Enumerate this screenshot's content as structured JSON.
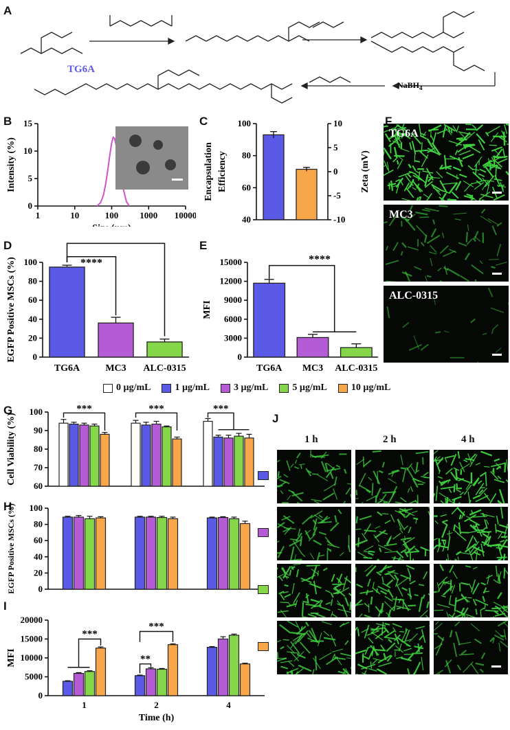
{
  "panels": {
    "A": "A",
    "B": "B",
    "C": "C",
    "D": "D",
    "E": "E",
    "F": "F",
    "G": "G",
    "H": "H",
    "I": "I",
    "J": "J"
  },
  "scheme": {
    "compound_name": "TG6A",
    "reagent": "NaBH4",
    "reagent_main": "NaBH",
    "reagent_sub": "4"
  },
  "colors": {
    "c0": "#ffffff",
    "c1": "#5a5ae6",
    "c3": "#b65bd6",
    "c5": "#86d64a",
    "c10": "#f7a64a",
    "green": "#3fd23f",
    "dls": "#cc55cc"
  },
  "legend": [
    {
      "label": "0 µg/mL",
      "color": "#ffffff"
    },
    {
      "label": "1 µg/mL",
      "color": "#5a5ae6"
    },
    {
      "label": "3 µg/mL",
      "color": "#b65bd6"
    },
    {
      "label": "5 µg/mL",
      "color": "#86d64a"
    },
    {
      "label": "10 µg/mL",
      "color": "#f7a64a"
    }
  ],
  "micro_F": [
    {
      "label": "TG6A",
      "density": 1.0
    },
    {
      "label": "MC3",
      "density": 0.3
    },
    {
      "label": "ALC-0315",
      "density": 0.08
    }
  ],
  "micro_J": {
    "cols": [
      "1 h",
      "2 h",
      "4 h"
    ],
    "rows": [
      {
        "color": "#5a5ae6",
        "density": [
          0.55,
          0.6,
          0.9
        ]
      },
      {
        "color": "#b65bd6",
        "density": [
          0.55,
          0.75,
          0.95
        ]
      },
      {
        "color": "#86d64a",
        "density": [
          0.8,
          0.75,
          0.8
        ]
      },
      {
        "color": "#f7a64a",
        "density": [
          0.7,
          0.85,
          0.4
        ]
      }
    ]
  },
  "chart_data": [
    {
      "panel": "B",
      "type": "line",
      "xlabel": "Size (nm)",
      "ylabel": "Intensity (%)",
      "xscale": "log",
      "xlim": [
        1,
        10000
      ],
      "ylim": [
        0,
        15
      ],
      "xticks": [
        "1",
        "10",
        "100",
        "1000",
        "10000"
      ],
      "yticks": [
        "0",
        "5",
        "10",
        "15"
      ],
      "series": [
        {
          "x": [
            40,
            50,
            60,
            70,
            80,
            90,
            100,
            110,
            120,
            140,
            160,
            200,
            250,
            300
          ],
          "y": [
            0,
            0.6,
            2,
            4.3,
            7,
            9.5,
            11.5,
            12.5,
            12.3,
            10.2,
            7.5,
            3.5,
            0.8,
            0
          ]
        }
      ]
    },
    {
      "panel": "C",
      "type": "bar",
      "ylabel": "Encapsulation Efficiency",
      "y2label": "Zeta (mV)",
      "ylim": [
        40,
        100
      ],
      "y2lim": [
        -10,
        10
      ],
      "yticks": [
        "40",
        "60",
        "80",
        "100"
      ],
      "y2ticks": [
        "-10",
        "-5",
        "0",
        "5",
        "10"
      ],
      "bars": [
        {
          "axis": "left",
          "value": 93,
          "error": 2,
          "color": "#5a5ae6"
        },
        {
          "axis": "right",
          "value": 0.5,
          "error": 0.4,
          "color": "#f7a64a"
        }
      ]
    },
    {
      "panel": "D",
      "type": "bar",
      "ylabel": "EGFP Positive MSCs (%)",
      "ylim": [
        0,
        100
      ],
      "yticks": [
        "0",
        "20",
        "40",
        "60",
        "80",
        "100"
      ],
      "categories": [
        "TG6A",
        "MC3",
        "ALC-0315"
      ],
      "values": [
        95,
        36,
        16
      ],
      "errors": [
        2,
        6,
        3
      ],
      "colors": [
        "#5a5ae6",
        "#b65bd6",
        "#86d64a"
      ],
      "sig": [
        "****",
        "****"
      ]
    },
    {
      "panel": "E",
      "type": "bar",
      "ylabel": "MFI",
      "ylim": [
        0,
        15000
      ],
      "yticks": [
        "0",
        "3000",
        "6000",
        "9000",
        "12000",
        "15000"
      ],
      "categories": [
        "TG6A",
        "MC3",
        "ALC-0315"
      ],
      "values": [
        11700,
        3100,
        1500
      ],
      "errors": [
        600,
        500,
        600
      ],
      "colors": [
        "#5a5ae6",
        "#b65bd6",
        "#86d64a"
      ],
      "sig": [
        "****"
      ]
    },
    {
      "panel": "G",
      "type": "bar",
      "ylabel": "Cell Viability (%)",
      "ylim": [
        60,
        100
      ],
      "yticks": [
        "60",
        "70",
        "80",
        "90",
        "100"
      ],
      "series": [
        {
          "name": "0 µg/mL",
          "values": [
            94,
            94,
            95
          ],
          "errors": [
            2,
            1.5,
            1.5
          ]
        },
        {
          "name": "1 µg/mL",
          "values": [
            93.5,
            93,
            86.5
          ],
          "errors": [
            1,
            1.5,
            1
          ]
        },
        {
          "name": "3 µg/mL",
          "values": [
            93,
            93.5,
            86
          ],
          "errors": [
            1,
            1.5,
            1.5
          ]
        },
        {
          "name": "5 µg/mL",
          "values": [
            92.5,
            92,
            87
          ],
          "errors": [
            1,
            0.5,
            1.5
          ]
        },
        {
          "name": "10 µg/mL",
          "values": [
            88,
            85.5,
            86
          ],
          "errors": [
            1,
            1,
            2
          ]
        }
      ],
      "sig": [
        "***",
        "***",
        "***"
      ]
    },
    {
      "panel": "H",
      "type": "bar",
      "ylabel": "EGFP Positive MSCs (%)",
      "ylim": [
        0,
        100
      ],
      "yticks": [
        "0",
        "20",
        "40",
        "60",
        "80",
        "100"
      ],
      "series": [
        {
          "name": "1 µg/mL",
          "values": [
            89,
            89,
            88
          ],
          "errors": [
            1,
            1,
            1
          ]
        },
        {
          "name": "3 µg/mL",
          "values": [
            89,
            89,
            88.5
          ],
          "errors": [
            2,
            1,
            1
          ]
        },
        {
          "name": "5 µg/mL",
          "values": [
            87,
            88.5,
            87
          ],
          "errors": [
            3,
            1.5,
            2
          ]
        },
        {
          "name": "10 µg/mL",
          "values": [
            88,
            87,
            81
          ],
          "errors": [
            1.5,
            2,
            3
          ]
        }
      ]
    },
    {
      "panel": "I",
      "type": "bar",
      "ylabel": "MFI",
      "xlabel": "Time (h)",
      "ylim": [
        0,
        20000
      ],
      "yticks": [
        "0",
        "5000",
        "10000",
        "15000",
        "20000"
      ],
      "categories": [
        "1",
        "2",
        "4"
      ],
      "series": [
        {
          "name": "1 µg/mL",
          "values": [
            3800,
            5300,
            12800
          ],
          "errors": [
            150,
            150,
            200
          ]
        },
        {
          "name": "3 µg/mL",
          "values": [
            5900,
            7100,
            15000
          ],
          "errors": [
            200,
            300,
            600
          ]
        },
        {
          "name": "5 µg/mL",
          "values": [
            6400,
            7000,
            16000
          ],
          "errors": [
            200,
            200,
            300
          ]
        },
        {
          "name": "10 µg/mL",
          "values": [
            12600,
            13500,
            8400
          ],
          "errors": [
            300,
            200,
            200
          ]
        }
      ],
      "sig": [
        "***",
        "***",
        "**"
      ]
    }
  ]
}
